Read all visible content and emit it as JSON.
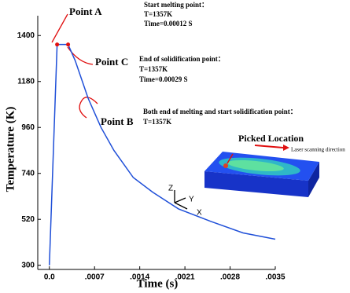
{
  "chart_data": {
    "type": "line",
    "xlabel": "Time (s)",
    "ylabel": "Temperature (K)",
    "xlim": [
      -0.00018,
      0.0035
    ],
    "ylim": [
      280,
      1495
    ],
    "xticks": [
      {
        "value": 0,
        "label": "0.0"
      },
      {
        "value": 0.0007,
        "label": ".0007"
      },
      {
        "value": 0.0014,
        "label": ".0014"
      },
      {
        "value": 0.0021,
        "label": ".0021"
      },
      {
        "value": 0.0028,
        "label": ".0028"
      },
      {
        "value": 0.0035,
        "label": ".0035"
      }
    ],
    "yticks": [
      300,
      520,
      740,
      960,
      1180,
      1400
    ],
    "grid": false,
    "series": [
      {
        "color": "#1f4fd8",
        "x": [
          0,
          0.00012,
          0.00029,
          0.0004,
          0.0006,
          0.0008,
          0.001,
          0.0013,
          0.0016,
          0.002,
          0.0025,
          0.003,
          0.0035
        ],
        "values": [
          300,
          1357,
          1357,
          1280,
          1100,
          960,
          850,
          720,
          650,
          570,
          510,
          455,
          425
        ]
      }
    ],
    "annotations": [
      {
        "label": "Point A",
        "lines": [
          "Start melting point：",
          "T=1357K",
          "Time=0.00012 S"
        ]
      },
      {
        "label": "Point C",
        "lines": [
          "End of solidification point：",
          "T=1357K",
          "Time=0.00029 S"
        ]
      },
      {
        "label": "Point B",
        "lines": [
          "Both end of melting and start solidification point：",
          "T=1357K"
        ]
      }
    ],
    "inset": {
      "title": "Picked Location",
      "arrow_label": "Laser scanning direction",
      "axes": [
        "Z",
        "Y",
        "X"
      ]
    }
  }
}
